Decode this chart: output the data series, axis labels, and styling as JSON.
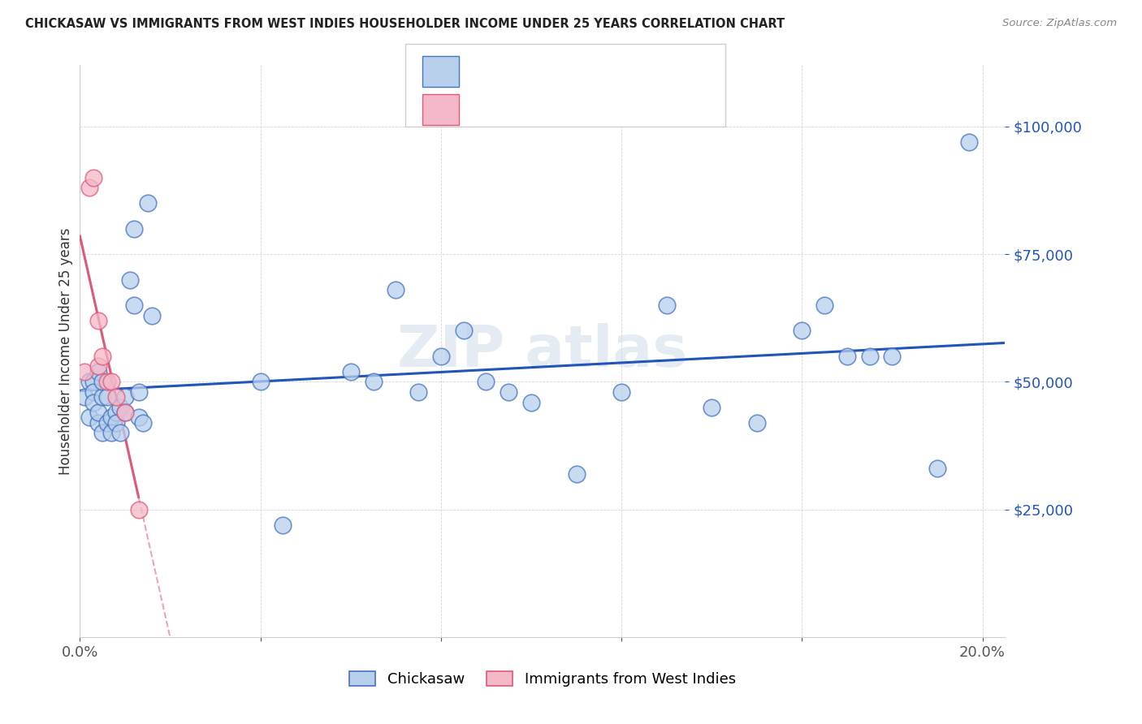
{
  "title": "CHICKASAW VS IMMIGRANTS FROM WEST INDIES HOUSEHOLDER INCOME UNDER 25 YEARS CORRELATION CHART",
  "source": "Source: ZipAtlas.com",
  "ylabel": "Householder Income Under 25 years",
  "ytick_labels": [
    "$25,000",
    "$50,000",
    "$75,000",
    "$100,000"
  ],
  "ytick_values": [
    25000,
    50000,
    75000,
    100000
  ],
  "ymin": 0,
  "ymax": 112000,
  "xmin": 0.0,
  "xmax": 0.205,
  "blue_fill": "#b8d0ec",
  "blue_edge": "#4472c4",
  "pink_fill": "#f4b8c8",
  "pink_edge": "#e05878",
  "blue_line_color": "#2255bb",
  "pink_line_color": "#e05878",
  "legend_text_color": "#2255bb",
  "watermark_color": "#ccd8e8",
  "blue_scatter_x": [
    0.001,
    0.002,
    0.002,
    0.003,
    0.003,
    0.003,
    0.004,
    0.004,
    0.004,
    0.005,
    0.005,
    0.005,
    0.006,
    0.006,
    0.007,
    0.007,
    0.008,
    0.008,
    0.009,
    0.009,
    0.01,
    0.01,
    0.011,
    0.012,
    0.012,
    0.013,
    0.013,
    0.014,
    0.015,
    0.016,
    0.04,
    0.045,
    0.06,
    0.065,
    0.07,
    0.075,
    0.08,
    0.085,
    0.09,
    0.095,
    0.1,
    0.11,
    0.12,
    0.13,
    0.14,
    0.15,
    0.16,
    0.165,
    0.17,
    0.175,
    0.18,
    0.19,
    0.197
  ],
  "blue_scatter_y": [
    47000,
    43000,
    50000,
    50000,
    48000,
    46000,
    52000,
    42000,
    44000,
    47000,
    50000,
    40000,
    47000,
    42000,
    43000,
    40000,
    44000,
    42000,
    45000,
    40000,
    47000,
    44000,
    70000,
    80000,
    65000,
    48000,
    43000,
    42000,
    85000,
    63000,
    50000,
    22000,
    52000,
    50000,
    68000,
    48000,
    55000,
    60000,
    50000,
    48000,
    46000,
    32000,
    48000,
    65000,
    45000,
    42000,
    60000,
    65000,
    55000,
    55000,
    55000,
    33000,
    97000
  ],
  "pink_scatter_x": [
    0.001,
    0.002,
    0.003,
    0.004,
    0.004,
    0.005,
    0.006,
    0.007,
    0.008,
    0.01,
    0.013
  ],
  "pink_scatter_y": [
    52000,
    88000,
    90000,
    62000,
    53000,
    55000,
    50000,
    50000,
    47000,
    44000,
    25000
  ],
  "xtick_positions": [
    0.0,
    0.04,
    0.08,
    0.12,
    0.16,
    0.2
  ],
  "xtick_labels": [
    "0.0%",
    "",
    "",
    "",
    "",
    "20.0%"
  ]
}
